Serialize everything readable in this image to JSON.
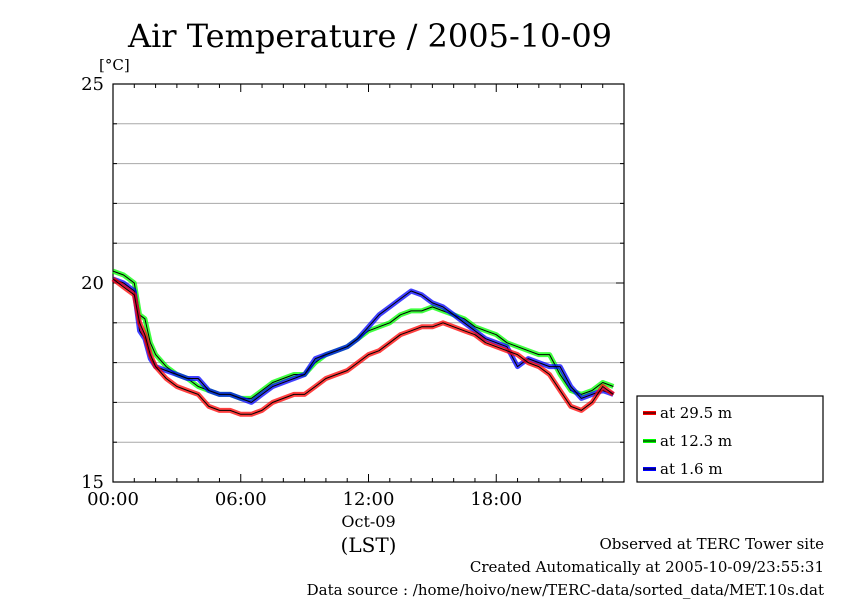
{
  "chart_data": {
    "type": "line",
    "title": "Air Temperature / 2005-10-09",
    "ylabel": "[°C]",
    "ylim": [
      15,
      25
    ],
    "y_ticks": [
      15,
      20,
      25
    ],
    "y_gridlines": [
      16,
      17,
      18,
      19,
      20,
      21,
      22,
      23,
      24
    ],
    "xlim": [
      "2005-10-09 00:00",
      "2005-10-09 23:30"
    ],
    "x_tick_labels": [
      "00:00",
      "06:00",
      "12:00",
      "18:00"
    ],
    "x_date_label": "Oct-09",
    "x_unit_label": "(LST)",
    "grid": "horizontal",
    "legend_position": "right",
    "x": [
      "00:00",
      "00:30",
      "01:00",
      "01:15",
      "01:30",
      "01:45",
      "02:00",
      "02:30",
      "03:00",
      "03:30",
      "04:00",
      "04:30",
      "05:00",
      "05:30",
      "06:00",
      "06:30",
      "07:00",
      "07:30",
      "08:00",
      "08:30",
      "09:00",
      "09:30",
      "10:00",
      "10:30",
      "11:00",
      "11:30",
      "12:00",
      "12:30",
      "13:00",
      "13:30",
      "14:00",
      "14:30",
      "15:00",
      "15:30",
      "16:00",
      "16:30",
      "17:00",
      "17:30",
      "18:00",
      "18:30",
      "19:00",
      "19:30",
      "20:00",
      "20:30",
      "21:00",
      "21:30",
      "22:00",
      "22:30",
      "23:00",
      "23:30"
    ],
    "series": [
      {
        "name": "at 29.5 m",
        "color": "#ff0000",
        "values": [
          20.1,
          19.9,
          19.7,
          19.0,
          18.7,
          18.2,
          17.9,
          17.6,
          17.4,
          17.3,
          17.2,
          16.9,
          16.8,
          16.8,
          16.7,
          16.7,
          16.8,
          17.0,
          17.1,
          17.2,
          17.2,
          17.4,
          17.6,
          17.7,
          17.8,
          18.0,
          18.2,
          18.3,
          18.5,
          18.7,
          18.8,
          18.9,
          18.9,
          19.0,
          18.9,
          18.8,
          18.7,
          18.5,
          18.4,
          18.3,
          18.2,
          18.0,
          17.9,
          17.7,
          17.3,
          16.9,
          16.8,
          17.0,
          17.4,
          17.2
        ]
      },
      {
        "name": "at 12.3 m",
        "color": "#00ff00",
        "values": [
          20.3,
          20.2,
          20.0,
          19.2,
          19.1,
          18.5,
          18.2,
          17.9,
          17.7,
          17.6,
          17.4,
          17.3,
          17.2,
          17.2,
          17.1,
          17.1,
          17.3,
          17.5,
          17.6,
          17.7,
          17.7,
          18.0,
          18.2,
          18.3,
          18.4,
          18.6,
          18.8,
          18.9,
          19.0,
          19.2,
          19.3,
          19.3,
          19.4,
          19.3,
          19.2,
          19.1,
          18.9,
          18.8,
          18.7,
          18.5,
          18.4,
          18.3,
          18.2,
          18.2,
          17.7,
          17.3,
          17.2,
          17.3,
          17.5,
          17.4
        ]
      },
      {
        "name": "at 1.6 m",
        "color": "#0000ff",
        "values": [
          20.1,
          20.0,
          19.8,
          18.8,
          18.6,
          18.1,
          17.9,
          17.8,
          17.7,
          17.6,
          17.6,
          17.3,
          17.2,
          17.2,
          17.1,
          17.0,
          17.2,
          17.4,
          17.5,
          17.6,
          17.7,
          18.1,
          18.2,
          18.3,
          18.4,
          18.6,
          18.9,
          19.2,
          19.4,
          19.6,
          19.8,
          19.7,
          19.5,
          19.4,
          19.2,
          19.0,
          18.8,
          18.6,
          18.5,
          18.4,
          17.9,
          18.1,
          18.0,
          17.9,
          17.9,
          17.4,
          17.1,
          17.2,
          17.3,
          17.2
        ]
      }
    ]
  },
  "footer": {
    "site": "Observed at TERC Tower site",
    "created": "Created Automatically at 2005-10-09/23:55:31",
    "source": "Data source : /home/hoivo/new/TERC-data/sorted_data/MET.10s.dat"
  }
}
